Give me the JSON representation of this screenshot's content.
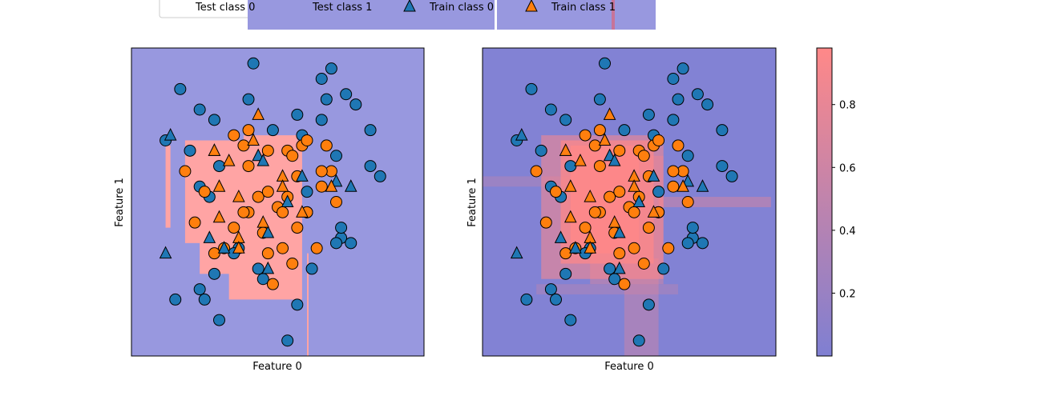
{
  "legend": {
    "entries": [
      {
        "label": "Test class 0",
        "marker": "circle",
        "color": "#1f77b4"
      },
      {
        "label": "Test class 1",
        "marker": "circle",
        "color": "#ff7f0e"
      },
      {
        "label": "Train class 0",
        "marker": "triangle",
        "color": "#1f77b4"
      },
      {
        "label": "Train class 1",
        "marker": "triangle",
        "color": "#ff7f0e"
      }
    ]
  },
  "colors": {
    "class0": "#1f77b4",
    "class1": "#ff7f0e",
    "region0": "#9898df",
    "region1": "#ffa4a4",
    "cmap_low": "#7f7fd2",
    "cmap_high": "#ff8888"
  },
  "chart_data": [
    {
      "type": "scatter",
      "xlabel": "Feature 0",
      "ylabel": "Feature 1",
      "xlim": [
        -3,
        3
      ],
      "ylim": [
        -3,
        3
      ],
      "decision_regions": {
        "class1_boxes": [
          [
            -1.9,
            0.5,
            1.2,
            -0.8
          ],
          [
            -0.7,
            0.4,
            0.9,
            1.3
          ],
          [
            -2.3,
            -2.2,
            -0.5,
            1.1
          ],
          [
            0.5,
            -1.0,
            -1.9,
            0.8
          ],
          [
            -1.6,
            -0.8,
            -1.4,
            0.8
          ]
        ]
      },
      "train_class0": [
        [
          -2.2,
          1.3
        ],
        [
          -1.3,
          1.0
        ],
        [
          -1.4,
          -0.7
        ],
        [
          -1.1,
          -0.9
        ],
        [
          -0.4,
          0.9
        ],
        [
          0.5,
          0.5
        ],
        [
          1.2,
          0.4
        ],
        [
          1.5,
          0.3
        ],
        [
          -2.3,
          -1.0
        ],
        [
          -0.2,
          -1.3
        ],
        [
          -0.2,
          -0.6
        ],
        [
          0.2,
          0.0
        ],
        [
          -0.3,
          0.8
        ]
      ],
      "train_class1": [
        [
          -1.0,
          0.8
        ],
        [
          -0.5,
          1.2
        ],
        [
          -1.2,
          0.3
        ],
        [
          -1.3,
          1.0
        ],
        [
          -0.8,
          0.1
        ],
        [
          1.1,
          0.3
        ],
        [
          -0.8,
          -0.7
        ],
        [
          0.1,
          0.5
        ],
        [
          -1.2,
          -0.3
        ],
        [
          0.5,
          -0.2
        ],
        [
          -0.3,
          -0.4
        ],
        [
          -0.8,
          -0.9
        ],
        [
          0.1,
          0.3
        ],
        [
          -0.4,
          1.7
        ]
      ],
      "test_class0": [
        [
          -2.0,
          2.2
        ],
        [
          -1.6,
          1.8
        ],
        [
          -1.3,
          1.6
        ],
        [
          -0.6,
          2.0
        ],
        [
          -0.1,
          1.4
        ],
        [
          0.4,
          1.7
        ],
        [
          0.9,
          1.6
        ],
        [
          1.0,
          2.0
        ],
        [
          1.6,
          1.9
        ],
        [
          -2.3,
          1.2
        ],
        [
          -1.8,
          1.0
        ],
        [
          -1.2,
          0.7
        ],
        [
          1.9,
          1.4
        ],
        [
          1.3,
          -0.7
        ],
        [
          -1.6,
          0.3
        ],
        [
          -1.4,
          0.1
        ],
        [
          -0.8,
          -0.9
        ],
        [
          -0.4,
          -1.3
        ],
        [
          -1.3,
          -1.4
        ],
        [
          -2.1,
          -1.9
        ],
        [
          -1.6,
          -1.7
        ],
        [
          -0.3,
          -1.5
        ],
        [
          0.4,
          -2.0
        ],
        [
          0.2,
          -2.7
        ],
        [
          0.6,
          0.2
        ],
        [
          0.7,
          -1.3
        ],
        [
          1.2,
          -0.8
        ],
        [
          1.5,
          -0.8
        ],
        [
          0.5,
          1.3
        ],
        [
          1.2,
          0.9
        ],
        [
          1.3,
          -0.5
        ],
        [
          2.1,
          0.5
        ],
        [
          1.9,
          0.7
        ],
        [
          1.4,
          2.1
        ],
        [
          -1.2,
          -2.3
        ],
        [
          -1.5,
          -1.9
        ],
        [
          -0.5,
          2.7
        ],
        [
          0.9,
          2.4
        ],
        [
          1.1,
          2.6
        ],
        [
          -0.9,
          -1.0
        ]
      ],
      "test_class1": [
        [
          -0.9,
          1.3
        ],
        [
          -0.7,
          1.1
        ],
        [
          -0.6,
          1.4
        ],
        [
          -0.2,
          1.0
        ],
        [
          0.2,
          1.0
        ],
        [
          0.5,
          1.1
        ],
        [
          1.1,
          0.6
        ],
        [
          0.9,
          0.3
        ],
        [
          -0.4,
          0.1
        ],
        [
          0.0,
          -0.1
        ],
        [
          0.4,
          -0.5
        ],
        [
          -0.6,
          -0.2
        ],
        [
          -0.9,
          -0.5
        ],
        [
          -0.3,
          -0.6
        ],
        [
          0.1,
          -0.9
        ],
        [
          0.3,
          -1.2
        ],
        [
          0.6,
          -0.2
        ],
        [
          -1.3,
          -1.0
        ],
        [
          -0.2,
          0.2
        ],
        [
          0.3,
          0.9
        ],
        [
          0.4,
          0.5
        ],
        [
          -1.9,
          0.6
        ],
        [
          1.2,
          0.0
        ],
        [
          0.8,
          -0.9
        ],
        [
          -0.1,
          -1.6
        ],
        [
          0.1,
          -0.2
        ],
        [
          -0.6,
          0.7
        ],
        [
          -1.1,
          -0.9
        ],
        [
          0.6,
          -0.2
        ],
        [
          -0.7,
          -0.2
        ],
        [
          1.0,
          1.1
        ],
        [
          -1.5,
          0.2
        ],
        [
          -1.7,
          -0.4
        ],
        [
          0.2,
          0.1
        ],
        [
          -0.2,
          -1.0
        ],
        [
          0.9,
          0.6
        ],
        [
          0.6,
          1.2
        ]
      ]
    },
    {
      "type": "scatter",
      "xlabel": "Feature 0",
      "ylabel": "Feature 1",
      "xlim": [
        -3,
        3
      ],
      "ylim": [
        -3,
        3
      ],
      "colorbar": {
        "ticks": [
          "0.2",
          "0.4",
          "0.6",
          "0.8"
        ],
        "tick_values": [
          0.2,
          0.4,
          0.6,
          0.8
        ],
        "range": [
          0.0,
          0.98
        ]
      }
    }
  ]
}
